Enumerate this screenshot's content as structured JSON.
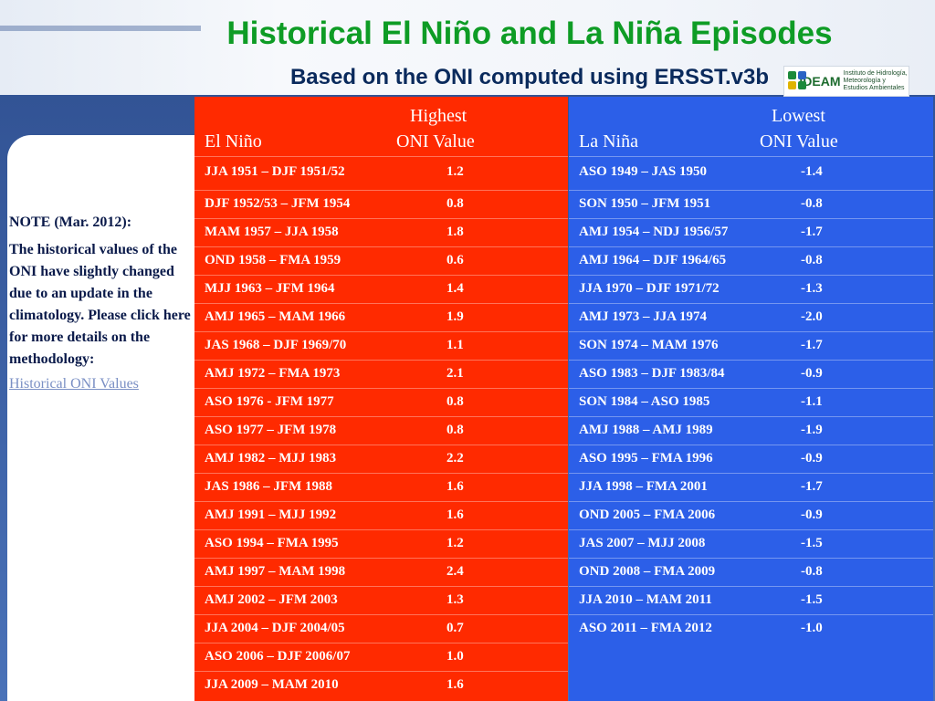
{
  "header": {
    "title": "Historical El Niño and La Niña Episodes",
    "subtitle": "Based on the ONI computed using ERSST.v3b",
    "logo_brand": "IDEAM",
    "logo_text": "Instituto de Hidrología, Meteorología y Estudios Ambientales"
  },
  "note": {
    "heading": "NOTE (Mar. 2012):",
    "body": "The historical values of the ONI have slightly changed due to an update in the climatology.  Please click here for more details on the methodology:",
    "link": "Historical ONI Values"
  },
  "el_nino": {
    "header_top": "Highest",
    "header_left": "El Niño",
    "header_right": "ONI Value",
    "rows": [
      {
        "period": "JJA 1951 – DJF 1951/52",
        "value": "1.2"
      },
      {
        "period": "DJF 1952/53 – JFM 1954",
        "value": "0.8"
      },
      {
        "period": "MAM 1957 – JJA 1958",
        "value": "1.8"
      },
      {
        "period": "OND 1958  – FMA 1959",
        "value": "0.6"
      },
      {
        "period": "MJJ 1963 – JFM 1964",
        "value": "1.4"
      },
      {
        "period": "AMJ 1965 – MAM 1966",
        "value": "1.9"
      },
      {
        "period": "JAS 1968 – DJF 1969/70",
        "value": "1.1"
      },
      {
        "period": "AMJ 1972 – FMA 1973",
        "value": "2.1"
      },
      {
        "period": "ASO 1976 - JFM 1977",
        "value": "0.8"
      },
      {
        "period": "ASO 1977 – JFM 1978",
        "value": "0.8"
      },
      {
        "period": "AMJ 1982 – MJJ 1983",
        "value": "2.2"
      },
      {
        "period": "JAS 1986 – JFM 1988",
        "value": "1.6"
      },
      {
        "period": "AMJ 1991 – MJJ 1992",
        "value": "1.6"
      },
      {
        "period": "ASO 1994 – FMA 1995",
        "value": "1.2"
      },
      {
        "period": "AMJ 1997 – MAM 1998",
        "value": "2.4"
      },
      {
        "period": "AMJ 2002 – JFM 2003",
        "value": "1.3"
      },
      {
        "period": "JJA 2004 – DJF 2004/05",
        "value": "0.7"
      },
      {
        "period": "ASO 2006 – DJF 2006/07",
        "value": "1.0"
      },
      {
        "period": "JJA 2009 – MAM 2010",
        "value": "1.6"
      }
    ]
  },
  "la_nina": {
    "header_top": "Lowest",
    "header_left": "La Niña",
    "header_right": "ONI Value",
    "rows": [
      {
        "period": "ASO 1949 – JAS 1950",
        "value": "-1.4"
      },
      {
        "period": "SON 1950 – JFM 1951",
        "value": "-0.8"
      },
      {
        "period": "AMJ 1954 – NDJ 1956/57",
        "value": "-1.7"
      },
      {
        "period": "AMJ 1964 – DJF 1964/65",
        "value": "-0.8"
      },
      {
        "period": "JJA 1970 – DJF 1971/72",
        "value": "-1.3"
      },
      {
        "period": "AMJ 1973 – JJA 1974",
        "value": "-2.0"
      },
      {
        "period": "SON 1974 – MAM 1976",
        "value": "-1.7"
      },
      {
        "period": "ASO 1983 – DJF 1983/84",
        "value": "-0.9"
      },
      {
        "period": "SON 1984 – ASO 1985",
        "value": "-1.1"
      },
      {
        "period": "AMJ 1988 – AMJ 1989",
        "value": "-1.9"
      },
      {
        "period": "ASO 1995 – FMA 1996",
        "value": "-0.9"
      },
      {
        "period": "JJA 1998 – FMA 2001",
        "value": "-1.7"
      },
      {
        "period": "OND 2005 – FMA 2006",
        "value": "-0.9"
      },
      {
        "period": "JAS 2007  – MJJ 2008",
        "value": "-1.5"
      },
      {
        "period": "OND 2008 – FMA 2009",
        "value": "-0.8"
      },
      {
        "period": "JJA 2010 – MAM 2011",
        "value": "-1.5"
      },
      {
        "period": "ASO 2011 – FMA 2012",
        "value": "-1.0"
      }
    ]
  }
}
